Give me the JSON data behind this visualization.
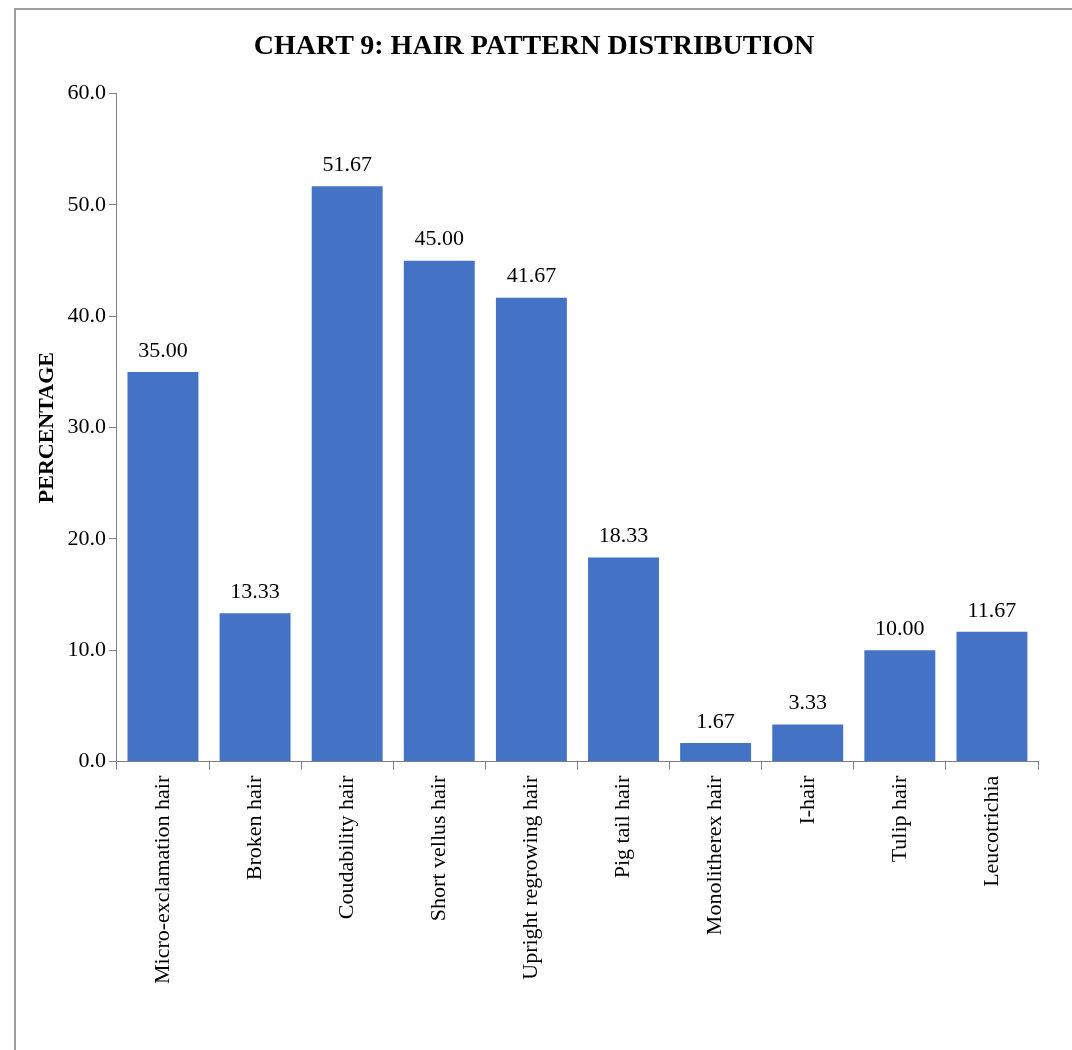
{
  "chart_data": {
    "type": "bar",
    "title": "CHART 9: HAIR PATTERN DISTRIBUTION",
    "ylabel": "PERCENTAGE",
    "categories": [
      "Micro-exclamation hair",
      "Broken hair",
      "Coudability hair",
      "Short vellus hair",
      "Upright regrowing hair",
      "Pig tail hair",
      "Monolitherex hair",
      "I-hair",
      "Tulip hair",
      "Leucotrichia"
    ],
    "values": [
      35.0,
      13.33,
      51.67,
      45.0,
      41.67,
      18.33,
      1.67,
      3.33,
      10.0,
      11.67
    ],
    "value_labels": [
      "35.00",
      "13.33",
      "51.67",
      "45.00",
      "41.67",
      "18.33",
      "1.67",
      "3.33",
      "10.00",
      "11.67"
    ],
    "color": "#4472c4",
    "ylim": [
      0,
      60
    ],
    "yticks": [
      {
        "value": 0,
        "label": "0.0"
      },
      {
        "value": 10,
        "label": "10.0"
      },
      {
        "value": 20,
        "label": "20.0"
      },
      {
        "value": 30,
        "label": "30.0"
      },
      {
        "value": 40,
        "label": "40.0"
      },
      {
        "value": 50,
        "label": "50.0"
      },
      {
        "value": 60,
        "label": "60.0"
      }
    ],
    "grid": false,
    "legend": false
  }
}
